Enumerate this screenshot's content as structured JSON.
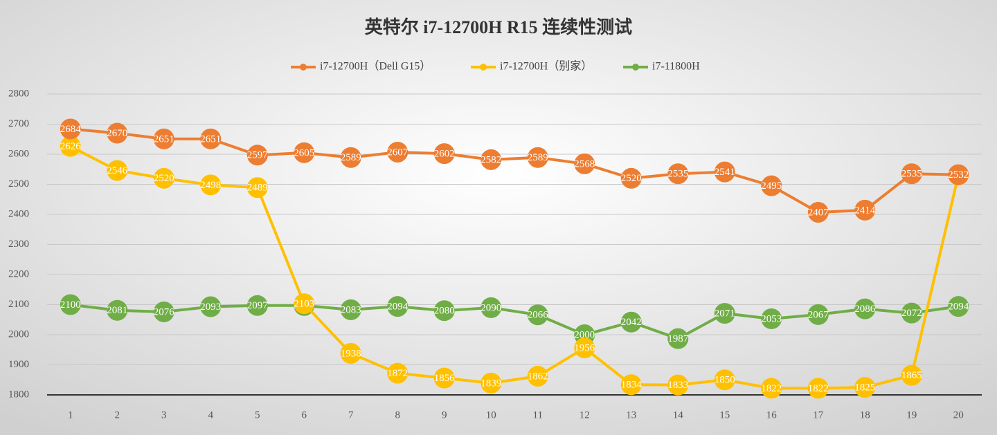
{
  "chart_data": {
    "type": "line",
    "title": "英特尔 i7-12700H R15 连续性测试",
    "categories": [
      "1",
      "2",
      "3",
      "4",
      "5",
      "6",
      "7",
      "8",
      "9",
      "10",
      "11",
      "12",
      "13",
      "14",
      "15",
      "16",
      "17",
      "18",
      "19",
      "20"
    ],
    "series": [
      {
        "name": "i7-12700H（Dell G15）",
        "color": "#ed7d31",
        "values": [
          2684,
          2670,
          2651,
          2651,
          2597,
          2605,
          2589,
          2607,
          2602,
          2582,
          2589,
          2568,
          2520,
          2535,
          2541,
          2495,
          2407,
          2414,
          2535,
          2532
        ]
      },
      {
        "name": "i7-12700H（别家）",
        "color": "#ffc000",
        "values": [
          2626,
          2546,
          2520,
          2498,
          2489,
          2103,
          1938,
          1872,
          1856,
          1839,
          1862,
          1956,
          1834,
          1833,
          1850,
          1822,
          1822,
          1825,
          1865,
          2531
        ]
      },
      {
        "name": "i7-11800H",
        "color": "#70ad47",
        "values": [
          2100,
          2081,
          2076,
          2093,
          2097,
          2097,
          2083,
          2094,
          2080,
          2090,
          2066,
          2000,
          2042,
          1987,
          2071,
          2053,
          2067,
          2086,
          2072,
          2094
        ]
      }
    ],
    "ylim": [
      1800,
      2800
    ],
    "yticks": [
      1800,
      1900,
      2000,
      2100,
      2200,
      2300,
      2400,
      2500,
      2600,
      2700,
      2800
    ],
    "grid": true,
    "legend": "top"
  }
}
